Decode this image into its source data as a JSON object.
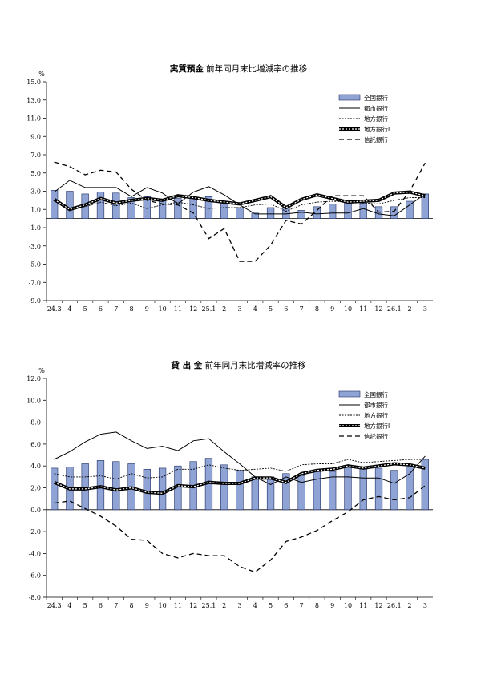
{
  "chart_data": [
    {
      "type": "bar+line",
      "title_bold": "実質預金",
      "title_rest": " 前年同月末比増減率の推移",
      "ylabel": "%",
      "ylim": [
        -9.0,
        15.0
      ],
      "yticks": [
        "15.0",
        "13.0",
        "11.0",
        "9.0",
        "7.0",
        "5.0",
        "3.0",
        "1.0",
        "-1.0",
        "-3.0",
        "-5.0",
        "-7.0",
        "-9.0"
      ],
      "categories": [
        "24.3",
        "4",
        "5",
        "6",
        "7",
        "8",
        "9",
        "10",
        "11",
        "12",
        "25.1",
        "2",
        "3",
        "4",
        "5",
        "6",
        "7",
        "8",
        "9",
        "10",
        "11",
        "12",
        "26.1",
        "2",
        "3"
      ],
      "legend": [
        "全国銀行",
        "都市銀行",
        "地方銀行",
        "地方銀行Ⅱ",
        "信託銀行"
      ],
      "series": [
        {
          "name": "全国銀行",
          "kind": "bar",
          "values": [
            3.1,
            3.0,
            2.7,
            2.9,
            2.8,
            2.3,
            2.4,
            2.1,
            2.2,
            2.2,
            2.4,
            1.9,
            1.2,
            0.6,
            1.2,
            1.2,
            0.9,
            1.3,
            1.6,
            1.7,
            1.7,
            1.3,
            1.3,
            1.9,
            2.7
          ]
        },
        {
          "name": "都市銀行",
          "kind": "solid",
          "values": [
            2.9,
            4.2,
            3.4,
            3.4,
            3.4,
            2.4,
            3.4,
            2.8,
            1.6,
            2.9,
            3.5,
            2.6,
            1.5,
            0.5,
            0.5,
            0.5,
            0.7,
            0.5,
            0.6,
            0.6,
            1.1,
            0.5,
            0.3,
            1.5,
            2.7
          ]
        },
        {
          "name": "地方銀行",
          "kind": "dotted",
          "values": [
            1.9,
            1.1,
            1.3,
            1.8,
            1.4,
            1.7,
            1.1,
            1.5,
            1.8,
            1.5,
            1.1,
            1.2,
            1.2,
            1.5,
            1.6,
            0.8,
            1.5,
            1.8,
            1.9,
            1.8,
            1.7,
            1.6,
            2.0,
            2.3,
            2.3
          ]
        },
        {
          "name": "地方銀行Ⅱ",
          "kind": "thick",
          "values": [
            2.1,
            1.0,
            1.5,
            2.2,
            1.7,
            2.0,
            2.2,
            2.0,
            2.5,
            2.3,
            2.0,
            1.8,
            1.6,
            2.0,
            2.4,
            1.2,
            2.1,
            2.6,
            2.2,
            1.8,
            1.9,
            2.0,
            2.8,
            2.9,
            2.5
          ]
        },
        {
          "name": "信託銀行",
          "kind": "dashed",
          "values": [
            6.2,
            5.7,
            4.8,
            5.3,
            5.1,
            3.2,
            2.0,
            1.6,
            1.5,
            0.6,
            -2.2,
            -1.1,
            -4.7,
            -4.7,
            -2.9,
            -0.2,
            -0.6,
            0.9,
            2.5,
            2.5,
            2.5,
            0.7,
            0.8,
            3.0,
            6.1
          ]
        }
      ]
    },
    {
      "type": "bar+line",
      "title_bold": "貸 出 金",
      "title_rest": " 前年同月末比増減率の推移",
      "ylabel": "%",
      "ylim": [
        -8.0,
        12.0
      ],
      "yticks": [
        "12.0",
        "10.0",
        "8.0",
        "6.0",
        "4.0",
        "2.0",
        "0.0",
        "-2.0",
        "-4.0",
        "-6.0",
        "-8.0"
      ],
      "categories": [
        "24.3",
        "4",
        "5",
        "6",
        "7",
        "8",
        "9",
        "10",
        "11",
        "12",
        "25.1",
        "2",
        "3",
        "4",
        "5",
        "6",
        "7",
        "8",
        "9",
        "10",
        "11",
        "12",
        "26.1",
        "2",
        "3"
      ],
      "legend": [
        "全国銀行",
        "都市銀行",
        "地方銀行",
        "地方銀行Ⅱ",
        "信託銀行"
      ],
      "series": [
        {
          "name": "全国銀行",
          "kind": "bar",
          "values": [
            3.8,
            3.9,
            4.2,
            4.5,
            4.4,
            4.2,
            3.7,
            3.8,
            4.0,
            4.4,
            4.7,
            4.1,
            3.6,
            3.0,
            3.0,
            3.3,
            3.1,
            3.5,
            3.5,
            3.9,
            3.8,
            3.8,
            3.6,
            4.1,
            4.6
          ]
        },
        {
          "name": "都市銀行",
          "kind": "solid",
          "values": [
            4.6,
            5.3,
            6.2,
            6.9,
            7.1,
            6.3,
            5.6,
            5.8,
            5.4,
            6.3,
            6.5,
            5.3,
            4.2,
            3.0,
            2.3,
            3.0,
            2.5,
            2.8,
            3.0,
            3.0,
            2.9,
            2.9,
            2.4,
            3.3,
            4.9
          ]
        },
        {
          "name": "地方銀行",
          "kind": "dotted",
          "values": [
            3.3,
            3.0,
            3.0,
            3.1,
            2.8,
            3.3,
            2.9,
            3.0,
            3.7,
            3.7,
            4.1,
            3.8,
            3.6,
            3.7,
            3.8,
            3.5,
            4.1,
            4.2,
            4.2,
            4.6,
            4.3,
            4.4,
            4.5,
            4.6,
            4.6
          ]
        },
        {
          "name": "地方銀行Ⅱ",
          "kind": "thick",
          "values": [
            2.5,
            1.9,
            1.9,
            2.1,
            1.8,
            2.0,
            1.6,
            1.5,
            2.2,
            2.1,
            2.5,
            2.4,
            2.4,
            2.9,
            2.9,
            2.5,
            3.3,
            3.6,
            3.7,
            4.0,
            3.8,
            4.0,
            4.2,
            4.1,
            3.8
          ]
        },
        {
          "name": "信託銀行",
          "kind": "dashed",
          "values": [
            0.6,
            0.8,
            0.1,
            -0.6,
            -1.5,
            -2.7,
            -2.8,
            -4.0,
            -4.4,
            -4.0,
            -4.2,
            -4.2,
            -5.2,
            -5.7,
            -4.6,
            -2.9,
            -2.5,
            -1.9,
            -1.0,
            -0.2,
            0.9,
            1.2,
            0.9,
            1.1,
            2.2
          ]
        }
      ]
    }
  ]
}
